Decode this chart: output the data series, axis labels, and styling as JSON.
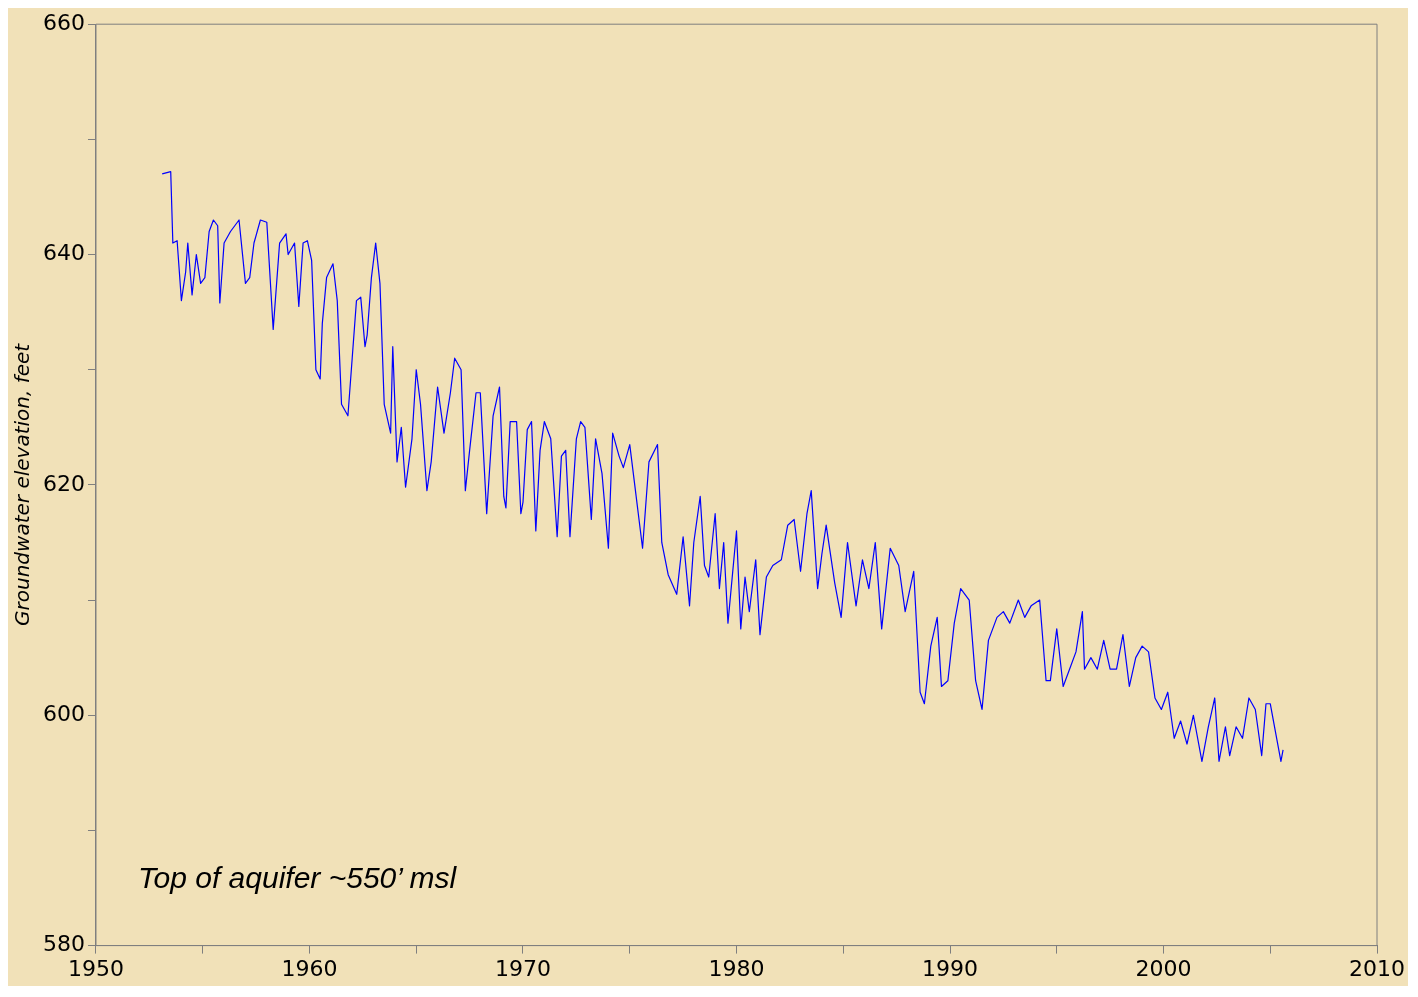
{
  "chart_data": {
    "type": "line",
    "ylabel": "Groundwater elevation, feet",
    "annotations": [
      "Top of aquifer ~550’ msl"
    ],
    "xlim": [
      1950,
      2010
    ],
    "ylim": [
      580,
      660
    ],
    "xticks": [
      1950,
      {
        "value": 1955,
        "label": null
      },
      1960,
      {
        "value": 1965,
        "label": null
      },
      1970,
      {
        "value": 1975,
        "label": null
      },
      1980,
      {
        "value": 1985,
        "label": null
      },
      1990,
      {
        "value": 1995,
        "label": null
      },
      2000,
      {
        "value": 2005,
        "label": null
      },
      2010
    ],
    "yticks": [
      580,
      {
        "value": 590,
        "label": null
      },
      600,
      {
        "value": 610,
        "label": null
      },
      620,
      {
        "value": 630,
        "label": null
      },
      640,
      {
        "value": 650,
        "label": null
      },
      660
    ],
    "grid": false,
    "legend": false,
    "series": [
      {
        "color": "#0000ff",
        "x": [
          1953.1,
          1953.5,
          1953.6,
          1953.8,
          1954.0,
          1954.2,
          1954.3,
          1954.5,
          1954.7,
          1954.9,
          1955.1,
          1955.3,
          1955.5,
          1955.7,
          1955.8,
          1956.0,
          1956.3,
          1956.7,
          1957.0,
          1957.2,
          1957.4,
          1957.7,
          1958.0,
          1958.3,
          1958.6,
          1958.9,
          1959.0,
          1959.3,
          1959.5,
          1959.7,
          1959.9,
          1960.1,
          1960.3,
          1960.5,
          1960.6,
          1960.8,
          1961.1,
          1961.3,
          1961.5,
          1961.8,
          1962.0,
          1962.2,
          1962.4,
          1962.6,
          1962.7,
          1962.9,
          1963.1,
          1963.3,
          1963.5,
          1963.8,
          1963.9,
          1964.1,
          1964.3,
          1964.5,
          1964.8,
          1965.0,
          1965.2,
          1965.5,
          1965.7,
          1966.0,
          1966.3,
          1966.6,
          1966.8,
          1967.1,
          1967.3,
          1967.5,
          1967.8,
          1968.0,
          1968.3,
          1968.6,
          1968.9,
          1969.1,
          1969.2,
          1969.4,
          1969.7,
          1969.9,
          1970.0,
          1970.2,
          1970.4,
          1970.6,
          1970.8,
          1971.0,
          1971.3,
          1971.6,
          1971.8,
          1972.0,
          1972.2,
          1972.5,
          1972.7,
          1972.9,
          1973.2,
          1973.4,
          1973.7,
          1974.0,
          1974.2,
          1974.5,
          1974.7,
          1975.0,
          1975.3,
          1975.6,
          1975.9,
          1976.3,
          1976.5,
          1976.8,
          1977.2,
          1977.5,
          1977.8,
          1978.0,
          1978.3,
          1978.5,
          1978.7,
          1979.0,
          1979.2,
          1979.4,
          1979.6,
          1980.0,
          1980.2,
          1980.4,
          1980.6,
          1980.9,
          1981.1,
          1981.4,
          1981.7,
          1982.1,
          1982.4,
          1982.7,
          1983.0,
          1983.3,
          1983.5,
          1983.8,
          1984.0,
          1984.2,
          1984.6,
          1984.9,
          1985.2,
          1985.6,
          1985.9,
          1986.2,
          1986.5,
          1986.8,
          1987.2,
          1987.6,
          1987.9,
          1988.3,
          1988.6,
          1988.8,
          1989.1,
          1989.4,
          1989.6,
          1989.9,
          1990.2,
          1990.5,
          1990.9,
          1991.2,
          1991.5,
          1991.8,
          1992.2,
          1992.5,
          1992.8,
          1993.2,
          1993.5,
          1993.8,
          1994.2,
          1994.5,
          1994.7,
          1995.0,
          1995.3,
          1995.6,
          1995.9,
          1996.2,
          1996.3,
          1996.6,
          1996.9,
          1997.2,
          1997.5,
          1997.8,
          1998.1,
          1998.4,
          1998.7,
          1999.0,
          1999.3,
          1999.6,
          1999.9,
          2000.2,
          2000.5,
          2000.8,
          2001.1,
          2001.4,
          2001.8,
          2002.1,
          2002.4,
          2002.6,
          2002.9,
          2003.1,
          2003.4,
          2003.7,
          2004.0,
          2004.3,
          2004.6,
          2004.8,
          2005.0,
          2005.3,
          2005.5,
          2005.6
        ],
        "values": [
          647,
          647.2,
          641,
          641.2,
          636,
          638.5,
          641,
          636.5,
          640,
          637.5,
          638,
          642,
          643,
          642.5,
          635.8,
          641,
          642,
          643,
          637.5,
          638,
          641,
          643,
          642.8,
          633.5,
          641,
          641.8,
          640,
          641,
          635.5,
          641,
          641.2,
          639.5,
          630,
          629.2,
          634,
          638,
          639.2,
          636,
          627,
          626,
          631,
          636,
          636.3,
          632,
          633,
          638,
          641,
          637.5,
          627,
          624.5,
          632,
          622,
          625,
          619.8,
          624,
          630,
          627,
          619.5,
          622,
          628.5,
          624.5,
          628,
          631,
          630,
          619.5,
          623,
          628,
          628,
          617.5,
          626,
          628.5,
          619,
          618,
          625.5,
          625.5,
          617.5,
          618.5,
          624.8,
          625.5,
          616,
          623,
          625.5,
          624,
          615.5,
          622.5,
          623,
          615.5,
          624,
          625.5,
          625,
          617,
          624,
          621,
          614.5,
          624.5,
          622.5,
          621.5,
          623.5,
          619,
          614.5,
          622,
          623.5,
          615,
          612.2,
          610.5,
          615.5,
          609.5,
          615,
          619,
          613,
          612,
          617.5,
          611,
          615,
          608,
          616,
          607.5,
          612,
          609,
          613.5,
          607,
          612,
          613,
          613.5,
          616.5,
          617,
          612.5,
          617.5,
          619.5,
          611,
          614,
          616.5,
          611.5,
          608.5,
          615,
          609.5,
          613.5,
          611,
          615,
          607.5,
          614.5,
          613,
          609,
          612.5,
          602,
          601,
          606,
          608.5,
          602.5,
          603,
          608,
          611,
          610,
          603,
          600.5,
          606.5,
          608.5,
          609,
          608,
          610,
          608.5,
          609.5,
          610,
          603,
          603,
          607.5,
          602.5,
          604,
          605.5,
          609,
          604,
          605,
          604,
          606.5,
          604,
          604,
          607,
          602.5,
          605,
          606,
          605.5,
          601.5,
          600.5,
          602,
          598,
          599.5,
          597.5,
          600,
          596,
          599,
          601.5,
          596,
          599,
          596.5,
          599,
          598,
          601.5,
          600.5,
          596.5,
          601,
          601,
          598,
          596,
          597
        ]
      }
    ]
  }
}
